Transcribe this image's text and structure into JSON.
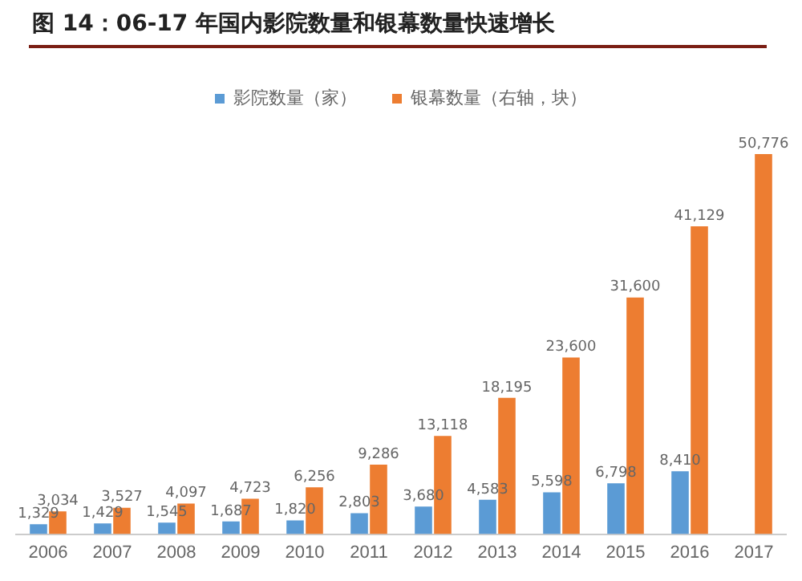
{
  "chart_data": {
    "type": "bar",
    "title": "图 14：06-17 年国内影院数量和银幕数量快速增长",
    "categories": [
      "2006",
      "2007",
      "2008",
      "2009",
      "2010",
      "2011",
      "2012",
      "2013",
      "2014",
      "2015",
      "2016",
      "2017"
    ],
    "series": [
      {
        "name": "影院数量（家）",
        "color": "#5b9bd5",
        "values": [
          1329,
          1429,
          1545,
          1687,
          1820,
          2803,
          3680,
          4583,
          5598,
          6798,
          8410,
          null
        ],
        "value_labels": [
          "1,329",
          "1,429",
          "1,545",
          "1,687",
          "1,820",
          "2,803",
          "3,680",
          "4,583",
          "5,598",
          "6,798",
          "8,410",
          null
        ]
      },
      {
        "name": "银幕数量（右轴，块）",
        "color": "#ed7d31",
        "values": [
          3034,
          3527,
          4097,
          4723,
          6256,
          9286,
          13118,
          18195,
          23600,
          31600,
          41129,
          50776
        ],
        "value_labels": [
          "3,034",
          "3,527",
          "4,097",
          "4,723",
          "6,256",
          "9,286",
          "13,118",
          "18,195",
          "23,600",
          "31,600",
          "41,129",
          "50,776"
        ]
      }
    ],
    "legend": "top",
    "grid": false,
    "tick_labels": "x"
  }
}
